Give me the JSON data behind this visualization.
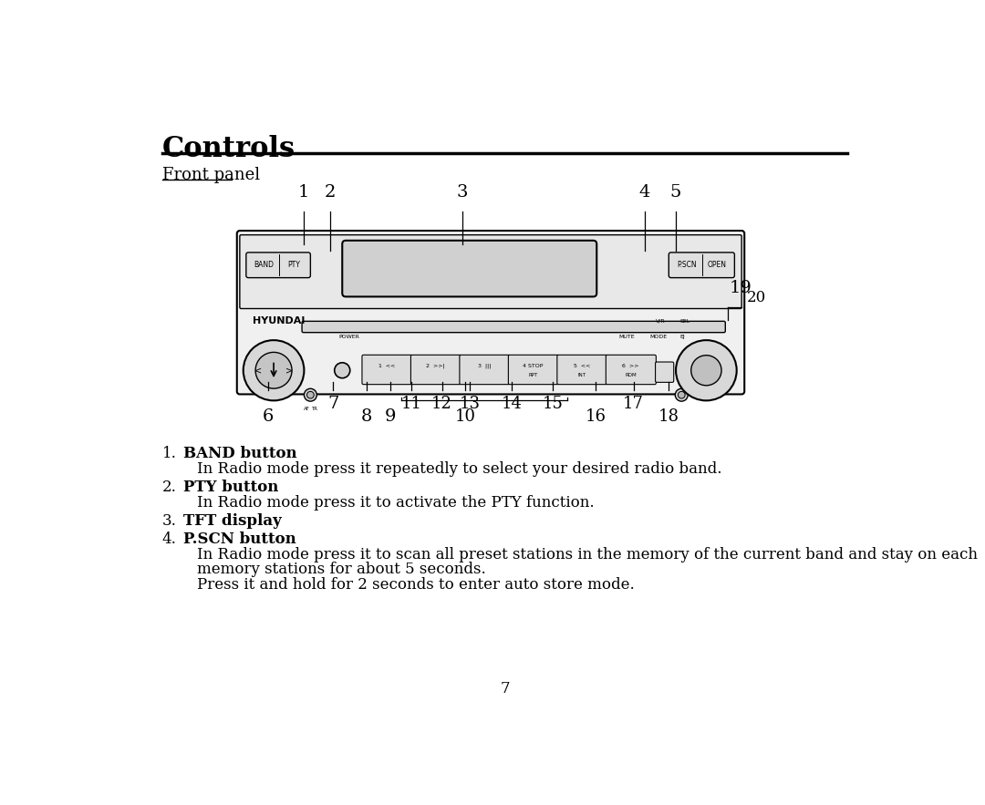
{
  "title": "Controls",
  "subtitle": "Front panel",
  "page_number": "7",
  "bg_color": "#ffffff",
  "text_color": "#000000",
  "list_items": [
    {
      "num": "1.",
      "bold": "BAND button",
      "desc": "In Radio mode press it repeatedly to select your desired radio band."
    },
    {
      "num": "2.",
      "bold": "PTY button",
      "desc": "In Radio mode press it to activate the PTY function."
    },
    {
      "num": "3.",
      "bold": "TFT display",
      "desc": ""
    },
    {
      "num": "4.",
      "bold": "P.SCN button",
      "desc": "In Radio mode press it to scan all preset stations in the memory of the current band and stay on each\nmemory stations for about 5 seconds.\nPress it and hold for 2 seconds to enter auto store mode."
    }
  ]
}
